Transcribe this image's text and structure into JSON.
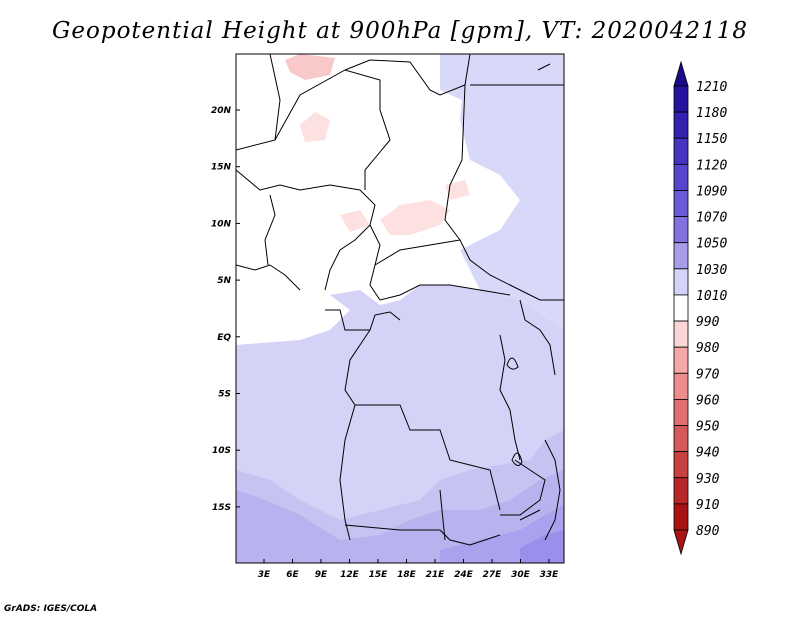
{
  "title": "Geopotential Height at 900hPa [gpm], VT: 2020042118",
  "credit": "GrADS: IGES/COLA",
  "map": {
    "lat_labels": [
      "20N",
      "15N",
      "10N",
      "5N",
      "EQ",
      "5S",
      "10S",
      "15S"
    ],
    "lon_labels": [
      "3E",
      "6E",
      "9E",
      "12E",
      "15E",
      "18E",
      "21E",
      "24E",
      "27E",
      "30E",
      "33E"
    ]
  },
  "colorbar": {
    "levels": [
      "1210",
      "1180",
      "1150",
      "1120",
      "1090",
      "1070",
      "1050",
      "1030",
      "1010",
      "990",
      "980",
      "970",
      "960",
      "950",
      "940",
      "930",
      "910",
      "890"
    ],
    "colors": [
      "#1a0a8c",
      "#25159e",
      "#3322b0",
      "#4434c0",
      "#5646cc",
      "#6a5ad6",
      "#8272e0",
      "#a89ee8",
      "#d4d4f8",
      "#ffffff",
      "#fbd6d6",
      "#f4a8a8",
      "#ec8c8c",
      "#e07070",
      "#d45a5a",
      "#c84040",
      "#b82828",
      "#a81414"
    ]
  },
  "field_colors": {
    "white": "#ffffff",
    "pink_light": "#fde0e0",
    "pink": "#f9c8c8",
    "lav_1": "#dcdcfa",
    "lav_2": "#cbc8f4",
    "lav_3": "#b8b2ee",
    "lav_4": "#a79ff0"
  }
}
